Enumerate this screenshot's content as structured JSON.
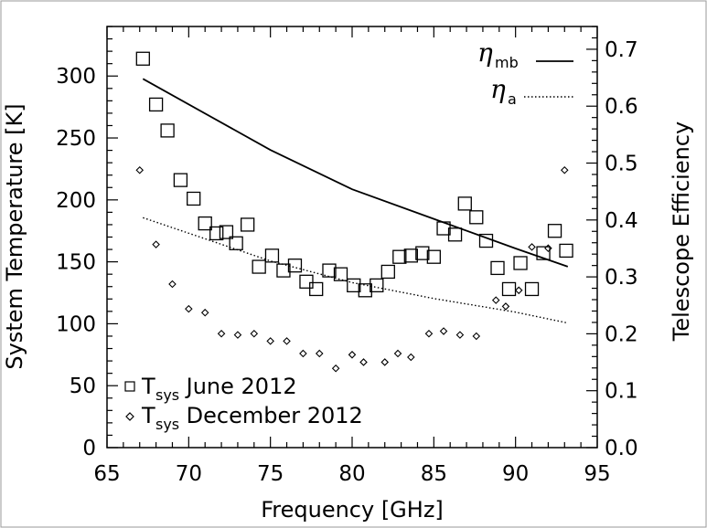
{
  "chart_data": {
    "type": "scatter",
    "xlabel": "Frequency [GHz]",
    "ylabel_left": "System Temperature [K]",
    "ylabel_right": "Telescope Efficiency",
    "xlim": [
      65,
      95
    ],
    "ylim_left": [
      0,
      340
    ],
    "ylim_right": [
      0.0,
      0.74
    ],
    "x_ticks": [
      "65",
      "70",
      "75",
      "80",
      "85",
      "90",
      "95"
    ],
    "y_left_ticks": [
      "0",
      "50",
      "100",
      "150",
      "200",
      "250",
      "300"
    ],
    "y_right_ticks": [
      "0.0",
      "0.1",
      "0.2",
      "0.3",
      "0.4",
      "0.5",
      "0.6",
      "0.7"
    ],
    "grid": false,
    "legend_bottom_left": [
      {
        "symbol": "square",
        "T": "T",
        "sub": "sys",
        "rest": " June 2012"
      },
      {
        "symbol": "diamond",
        "T": "T",
        "sub": "sys",
        "rest": " December 2012"
      }
    ],
    "legend_top_right": [
      {
        "eta": "η",
        "sub": "mb",
        "style": "solid"
      },
      {
        "eta": "η",
        "sub": "a",
        "style": "dotted"
      }
    ],
    "series": [
      {
        "name": "T sys June 2012",
        "marker": "square",
        "axis": "left",
        "x": [
          67.2,
          68.0,
          68.7,
          69.5,
          70.3,
          71.0,
          71.7,
          72.3,
          72.9,
          73.6,
          74.3,
          75.1,
          75.8,
          76.5,
          77.2,
          77.8,
          78.6,
          79.3,
          80.1,
          80.8,
          81.5,
          82.2,
          82.9,
          83.6,
          84.3,
          85.0,
          85.6,
          86.3,
          86.9,
          87.6,
          88.2,
          88.9,
          89.6,
          90.3,
          91.0,
          91.7,
          92.4,
          93.1
        ],
        "y": [
          314,
          277,
          256,
          216,
          201,
          181,
          173,
          174,
          165,
          180,
          146,
          155,
          143,
          147,
          134,
          128,
          143,
          140,
          131,
          127,
          131,
          142,
          154,
          155,
          157,
          154,
          177,
          172,
          197,
          186,
          167,
          145,
          128,
          149,
          128,
          157,
          175,
          159
        ]
      },
      {
        "name": "T sys December 2012",
        "marker": "diamond",
        "axis": "left",
        "x": [
          67.0,
          68.0,
          69.0,
          70.0,
          71.0,
          72.0,
          73.0,
          74.0,
          75.0,
          76.0,
          77.0,
          78.0,
          79.0,
          80.0,
          80.7,
          82.0,
          82.8,
          83.6,
          84.7,
          85.6,
          86.6,
          87.6,
          88.8,
          89.4,
          90.2,
          91.0,
          92.0,
          93.0
        ],
        "y": [
          224,
          164,
          132,
          112,
          109,
          92,
          91,
          92,
          86,
          86,
          76,
          76,
          64,
          75,
          69,
          69,
          76,
          73,
          92,
          94,
          91,
          90,
          119,
          114,
          127,
          162,
          161,
          224
        ]
      },
      {
        "name": "eta mb",
        "line": "solid",
        "axis": "right",
        "x": [
          67.2,
          75.0,
          80.0,
          85.0,
          90.0,
          93.2
        ],
        "y": [
          0.648,
          0.523,
          0.454,
          0.402,
          0.35,
          0.318
        ]
      },
      {
        "name": "eta a",
        "line": "dotted",
        "axis": "right",
        "x": [
          67.2,
          75.0,
          80.0,
          85.0,
          90.0,
          93.2
        ],
        "y": [
          0.404,
          0.328,
          0.29,
          0.262,
          0.238,
          0.219
        ]
      }
    ]
  }
}
